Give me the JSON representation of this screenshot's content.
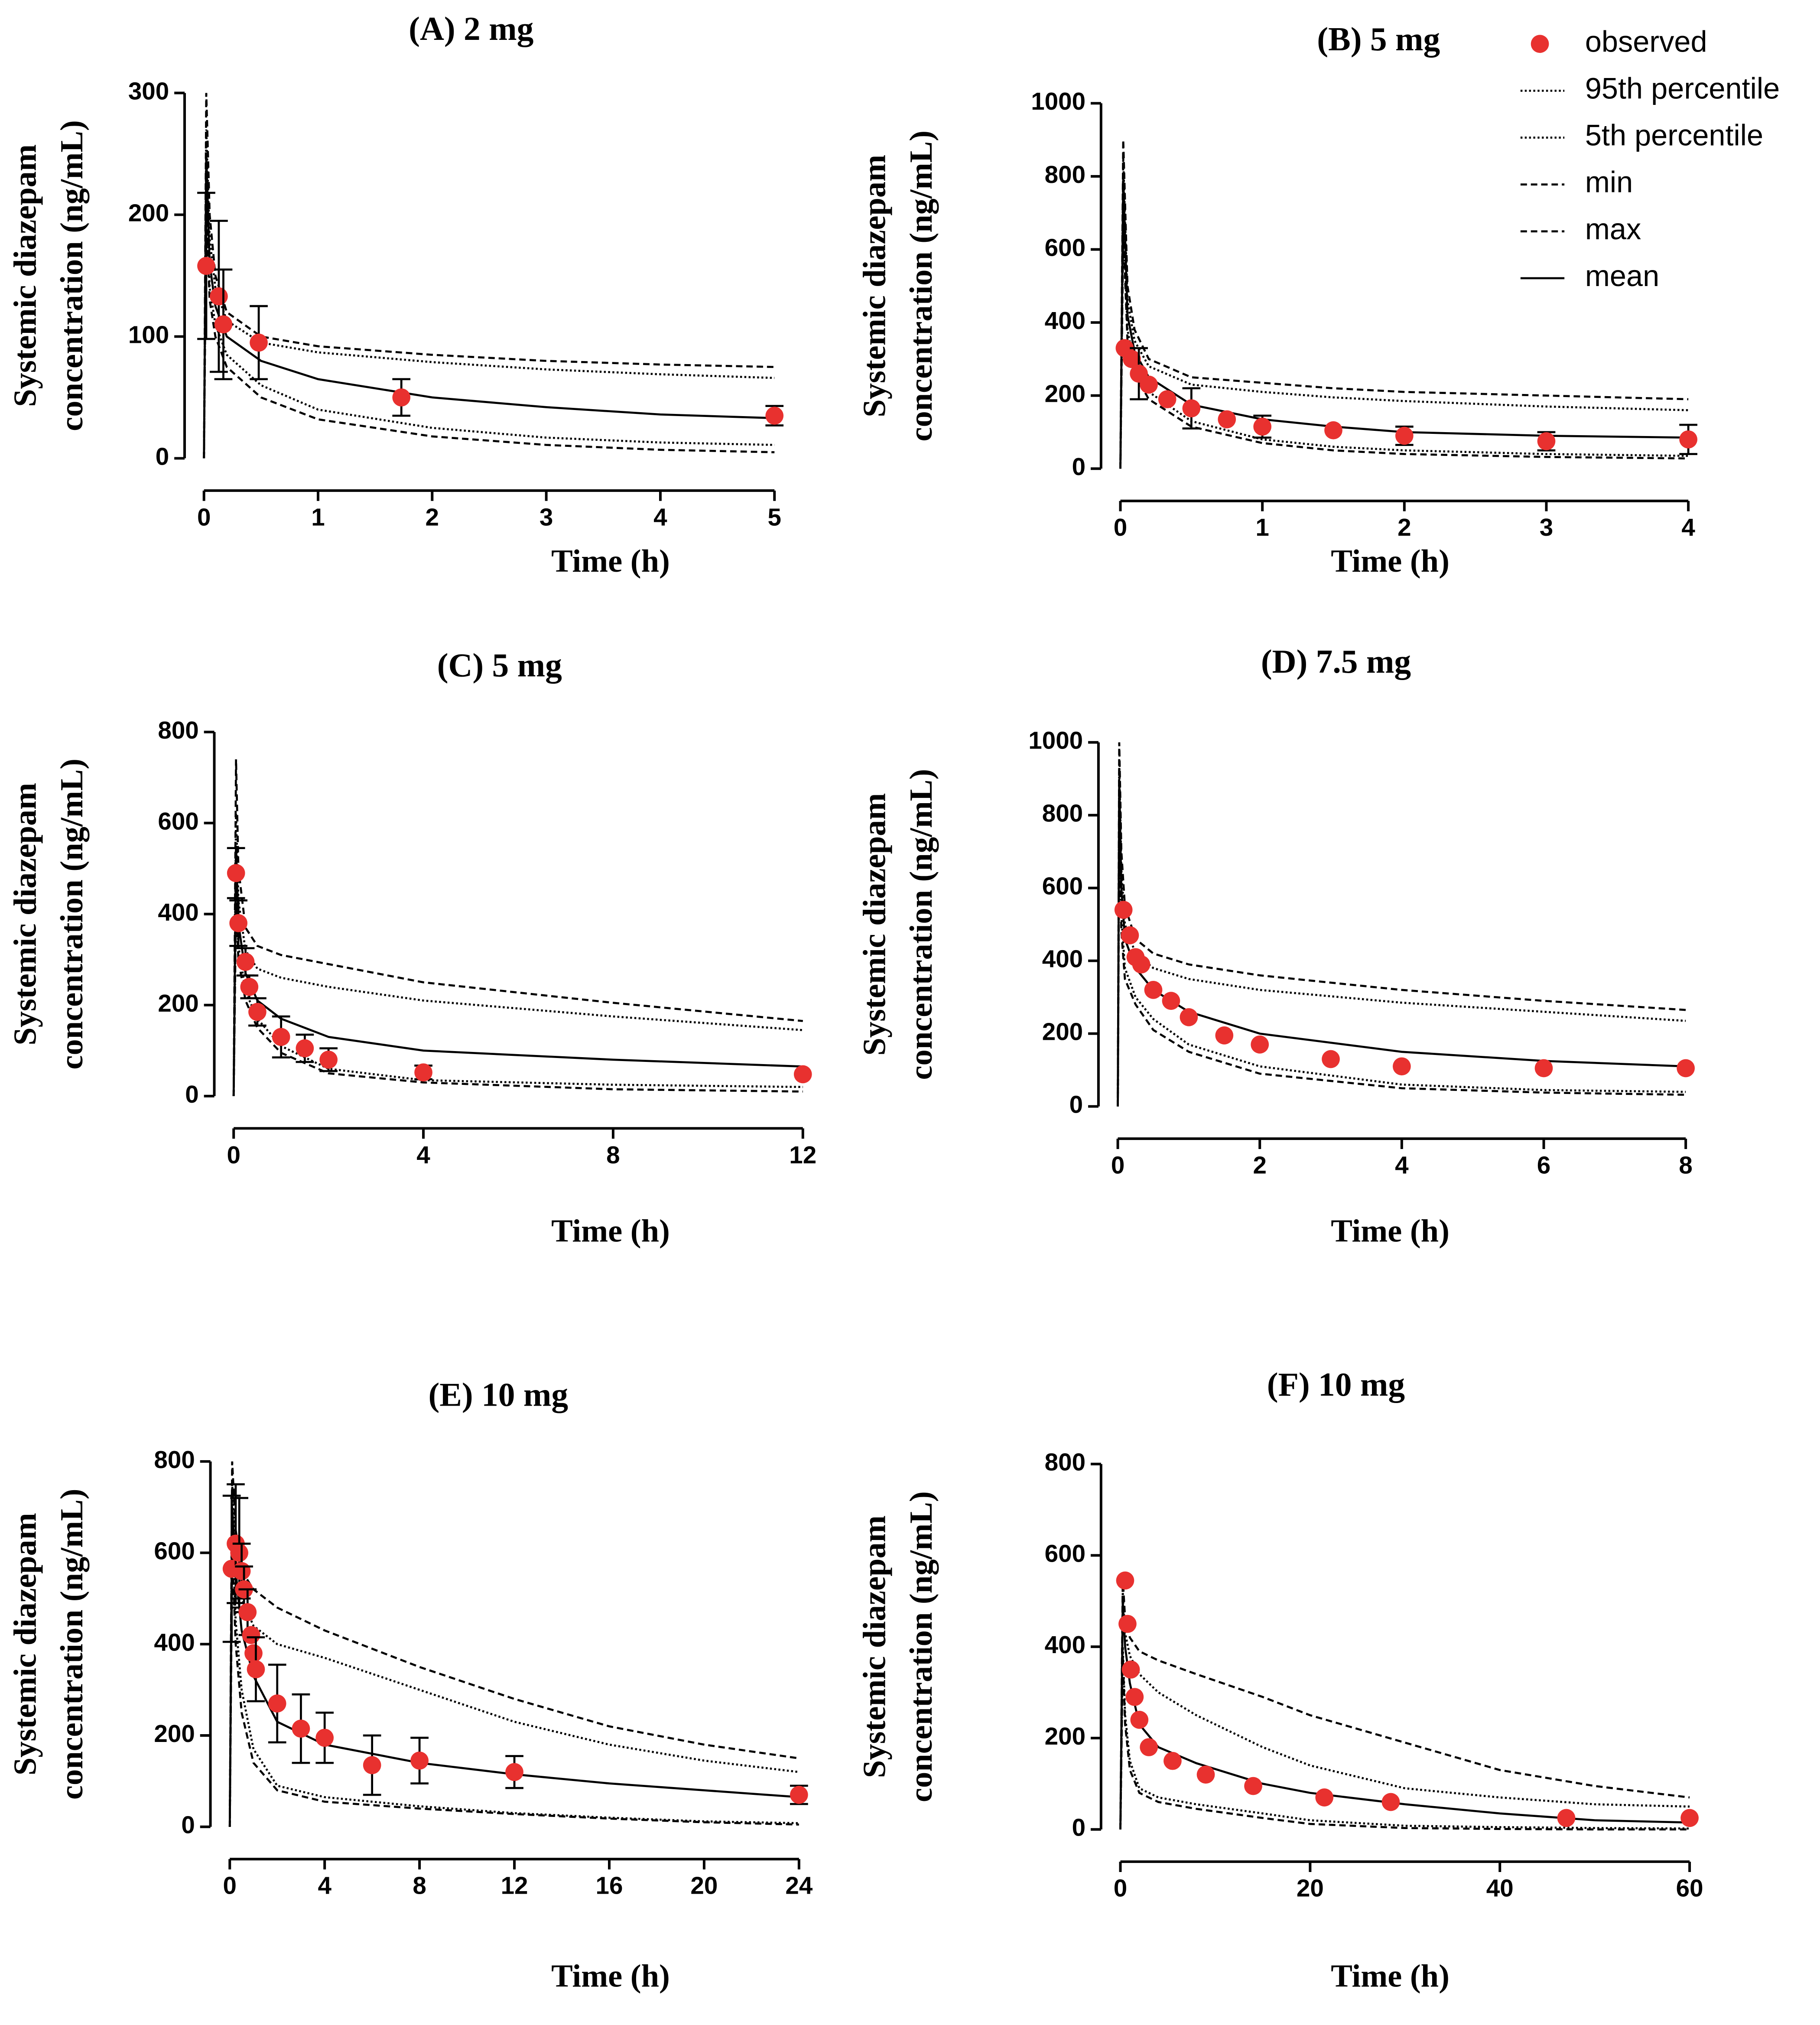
{
  "chart_data": [
    {
      "type": "line",
      "title": "(A) 2 mg",
      "xlabel": "Time (h)",
      "ylabel": [
        "Systemic diazepam",
        "concentration (ng/mL)"
      ],
      "xlim": [
        0,
        5
      ],
      "ylim": [
        0,
        300
      ],
      "xticks": [
        0,
        1,
        2,
        3,
        4,
        5
      ],
      "yticks": [
        0,
        100,
        200,
        300
      ],
      "x": [
        0,
        0.02,
        0.05,
        0.1,
        0.2,
        0.5,
        1,
        2,
        3,
        4,
        5
      ],
      "series": [
        {
          "type": "scatter",
          "color": "#e8312f",
          "x": [
            0.02,
            0.13,
            0.17,
            0.48,
            1.73,
            5
          ],
          "values": [
            158,
            133,
            110,
            95,
            50,
            35
          ],
          "errors": [
            60,
            62,
            45,
            30,
            15,
            8
          ]
        },
        {
          "color": "#000000",
          "dash": "dotted",
          "values": [
            0,
            270,
            180,
            140,
            113,
            95,
            87,
            79,
            73,
            69,
            66
          ]
        },
        {
          "color": "#000000",
          "dash": "dotted",
          "values": [
            0,
            220,
            140,
            110,
            85,
            60,
            40,
            25,
            17,
            13,
            11
          ]
        },
        {
          "color": "#000000",
          "dash": "dashed",
          "values": [
            0,
            200,
            130,
            100,
            75,
            50,
            32,
            18,
            11,
            7,
            5
          ]
        },
        {
          "color": "#000000",
          "dash": "dashed",
          "values": [
            0,
            300,
            200,
            150,
            120,
            100,
            92,
            85,
            80,
            77,
            75
          ]
        },
        {
          "color": "#000000",
          "dash": "solid",
          "values": [
            0,
            250,
            160,
            125,
            100,
            80,
            65,
            50,
            42,
            36,
            33
          ]
        }
      ]
    },
    {
      "type": "line",
      "title": "(B) 5 mg",
      "xlabel": "Time (h)",
      "ylabel": [
        "Systemic diazepam",
        "concentration (ng/mL)"
      ],
      "xlim": [
        0,
        4
      ],
      "ylim": [
        0,
        1000
      ],
      "xticks": [
        0,
        1,
        2,
        3,
        4
      ],
      "yticks": [
        0,
        200,
        400,
        600,
        800,
        1000
      ],
      "legend": "upper right",
      "x": [
        0,
        0.02,
        0.05,
        0.1,
        0.2,
        0.5,
        1,
        1.5,
        2,
        3,
        4
      ],
      "series": [
        {
          "name": "observed",
          "type": "scatter",
          "color": "#e8312f",
          "x": [
            0.03,
            0.08,
            0.13,
            0.2,
            0.33,
            0.5,
            0.75,
            1,
            1.5,
            2,
            3,
            4
          ],
          "values": [
            330,
            300,
            260,
            230,
            190,
            165,
            135,
            115,
            105,
            90,
            75,
            80
          ],
          "errors": [
            null,
            null,
            70,
            null,
            null,
            55,
            null,
            30,
            null,
            25,
            25,
            40
          ]
        },
        {
          "name": "95th percentile",
          "color": "#000000",
          "dash": "dotted",
          "values": [
            0,
            850,
            460,
            350,
            280,
            230,
            210,
            195,
            185,
            170,
            160
          ]
        },
        {
          "name": "5th percentile",
          "color": "#000000",
          "dash": "dotted",
          "values": [
            0,
            700,
            380,
            280,
            210,
            130,
            80,
            60,
            50,
            40,
            35
          ]
        },
        {
          "name": "min",
          "color": "#000000",
          "dash": "dashed",
          "values": [
            0,
            650,
            350,
            260,
            190,
            115,
            70,
            50,
            40,
            32,
            28
          ]
        },
        {
          "name": "max",
          "color": "#000000",
          "dash": "dashed",
          "values": [
            0,
            900,
            500,
            380,
            300,
            250,
            235,
            220,
            210,
            200,
            190
          ]
        },
        {
          "name": "mean",
          "color": "#000000",
          "dash": "solid",
          "values": [
            0,
            800,
            420,
            320,
            250,
            175,
            135,
            115,
            100,
            90,
            85
          ]
        }
      ]
    },
    {
      "type": "line",
      "title": "(C) 5 mg",
      "xlabel": "Time (h)",
      "ylabel": [
        "Systemic diazepam",
        "concentration (ng/mL)"
      ],
      "xlim": [
        0,
        12
      ],
      "ylim": [
        0,
        800
      ],
      "xticks": [
        0,
        4,
        8,
        12
      ],
      "yticks": [
        0,
        200,
        400,
        600,
        800
      ],
      "x": [
        0,
        0.05,
        0.1,
        0.25,
        0.5,
        1,
        2,
        4,
        8,
        12
      ],
      "series": [
        {
          "type": "scatter",
          "color": "#e8312f",
          "x": [
            0.05,
            0.1,
            0.25,
            0.33,
            0.5,
            1,
            1.5,
            2,
            4,
            12
          ],
          "values": [
            490,
            380,
            295,
            240,
            185,
            130,
            105,
            80,
            52,
            48
          ],
          "errors": [
            55,
            50,
            30,
            25,
            30,
            45,
            30,
            25,
            15,
            null
          ]
        },
        {
          "color": "#000000",
          "dash": "dotted",
          "values": [
            0,
            620,
            430,
            320,
            280,
            260,
            240,
            210,
            175,
            145
          ]
        },
        {
          "color": "#000000",
          "dash": "dotted",
          "values": [
            0,
            450,
            330,
            230,
            170,
            110,
            60,
            35,
            25,
            20
          ]
        },
        {
          "color": "#000000",
          "dash": "dashed",
          "values": [
            0,
            420,
            300,
            210,
            150,
            95,
            50,
            30,
            15,
            10
          ]
        },
        {
          "color": "#000000",
          "dash": "dashed",
          "values": [
            0,
            740,
            500,
            370,
            330,
            310,
            290,
            250,
            205,
            165
          ]
        },
        {
          "color": "#000000",
          "dash": "solid",
          "values": [
            0,
            550,
            380,
            270,
            210,
            170,
            130,
            100,
            80,
            65
          ]
        }
      ]
    },
    {
      "type": "line",
      "title": "(D) 7.5 mg",
      "xlabel": "Time (h)",
      "ylabel": [
        "Systemic diazepam",
        "concentration (ng/mL)"
      ],
      "xlim": [
        0,
        8
      ],
      "ylim": [
        0,
        1000
      ],
      "xticks": [
        0,
        2,
        4,
        6,
        8
      ],
      "yticks": [
        0,
        200,
        400,
        600,
        800,
        1000
      ],
      "x": [
        0,
        0.02,
        0.05,
        0.1,
        0.25,
        0.5,
        1,
        2,
        4,
        6,
        8
      ],
      "series": [
        {
          "type": "scatter",
          "color": "#e8312f",
          "x": [
            0.08,
            0.17,
            0.25,
            0.33,
            0.5,
            0.75,
            1,
            1.5,
            2,
            3,
            4,
            6,
            8
          ],
          "values": [
            540,
            470,
            410,
            390,
            320,
            290,
            245,
            195,
            170,
            130,
            110,
            105,
            105
          ],
          "errors": [
            null,
            null,
            null,
            null,
            null,
            null,
            null,
            null,
            null,
            null,
            null,
            null,
            null
          ]
        },
        {
          "color": "#000000",
          "dash": "dotted",
          "values": [
            0,
            950,
            650,
            500,
            420,
            380,
            350,
            320,
            285,
            260,
            235
          ]
        },
        {
          "color": "#000000",
          "dash": "dotted",
          "values": [
            0,
            800,
            520,
            380,
            300,
            240,
            170,
            110,
            60,
            45,
            40
          ]
        },
        {
          "color": "#000000",
          "dash": "dashed",
          "values": [
            0,
            750,
            480,
            350,
            280,
            210,
            150,
            90,
            50,
            38,
            32
          ]
        },
        {
          "color": "#000000",
          "dash": "dashed",
          "values": [
            0,
            1000,
            700,
            550,
            460,
            420,
            390,
            360,
            320,
            290,
            265
          ]
        },
        {
          "color": "#000000",
          "dash": "solid",
          "values": [
            0,
            900,
            600,
            460,
            380,
            320,
            260,
            200,
            150,
            125,
            110
          ]
        }
      ]
    },
    {
      "type": "line",
      "title": "(E) 10 mg",
      "xlabel": "Time (h)",
      "ylabel": [
        "Systemic diazepam",
        "concentration (ng/mL)"
      ],
      "xlim": [
        0,
        24
      ],
      "ylim": [
        0,
        800
      ],
      "xticks": [
        0,
        4,
        8,
        12,
        16,
        20,
        24
      ],
      "yticks": [
        0,
        200,
        400,
        600,
        800
      ],
      "x": [
        0,
        0.1,
        0.25,
        0.5,
        1,
        2,
        4,
        8,
        12,
        16,
        20,
        24
      ],
      "series": [
        {
          "type": "scatter",
          "color": "#e8312f",
          "x": [
            0.08,
            0.25,
            0.4,
            0.5,
            0.6,
            0.75,
            0.9,
            1,
            1.1,
            2,
            3,
            4,
            6,
            8,
            12,
            24
          ],
          "values": [
            565,
            620,
            600,
            560,
            520,
            470,
            420,
            380,
            345,
            270,
            215,
            195,
            135,
            145,
            120,
            70
          ],
          "errors": [
            160,
            130,
            120,
            60,
            50,
            50,
            null,
            null,
            70,
            85,
            75,
            55,
            65,
            50,
            35,
            20
          ]
        },
        {
          "color": "#000000",
          "dash": "dotted",
          "values": [
            0,
            750,
            600,
            500,
            440,
            400,
            370,
            300,
            230,
            180,
            145,
            120
          ]
        },
        {
          "color": "#000000",
          "dash": "dotted",
          "values": [
            0,
            650,
            450,
            300,
            170,
            90,
            65,
            45,
            30,
            20,
            12,
            8
          ]
        },
        {
          "color": "#000000",
          "dash": "dashed",
          "values": [
            0,
            600,
            400,
            250,
            140,
            80,
            55,
            40,
            28,
            18,
            10,
            5
          ]
        },
        {
          "color": "#000000",
          "dash": "dashed",
          "values": [
            0,
            800,
            650,
            560,
            520,
            480,
            430,
            350,
            280,
            220,
            180,
            150
          ]
        },
        {
          "color": "#000000",
          "dash": "solid",
          "values": [
            0,
            700,
            560,
            430,
            330,
            230,
            180,
            140,
            115,
            95,
            80,
            65
          ]
        }
      ]
    },
    {
      "type": "line",
      "title": "(F) 10 mg",
      "xlabel": "Time (h)",
      "ylabel": [
        "Systemic diazepam",
        "concentration (ng/mL)"
      ],
      "xlim": [
        0,
        60
      ],
      "ylim": [
        0,
        800
      ],
      "xticks": [
        0,
        20,
        40,
        60
      ],
      "yticks": [
        0,
        200,
        400,
        600,
        800
      ],
      "x": [
        0,
        0.25,
        0.5,
        1,
        2,
        4,
        8,
        15,
        20,
        30,
        40,
        50,
        60
      ],
      "series": [
        {
          "type": "scatter",
          "color": "#e8312f",
          "x": [
            0.5,
            0.75,
            1.1,
            1.5,
            2,
            3,
            5.5,
            9,
            14,
            21.5,
            28.5,
            47,
            60
          ],
          "values": [
            545,
            450,
            350,
            290,
            240,
            180,
            150,
            120,
            95,
            70,
            60,
            25,
            25
          ],
          "errors": [
            null,
            null,
            null,
            null,
            null,
            null,
            null,
            null,
            null,
            null,
            null,
            null,
            null
          ]
        },
        {
          "color": "#000000",
          "dash": "dotted",
          "values": [
            0,
            520,
            430,
            380,
            340,
            300,
            250,
            180,
            140,
            90,
            70,
            55,
            50
          ]
        },
        {
          "color": "#000000",
          "dash": "dotted",
          "values": [
            0,
            400,
            250,
            150,
            90,
            70,
            55,
            35,
            20,
            8,
            5,
            3,
            2
          ]
        },
        {
          "color": "#000000",
          "dash": "dashed",
          "values": [
            0,
            380,
            230,
            130,
            80,
            60,
            45,
            25,
            12,
            3,
            1,
            0,
            0
          ]
        },
        {
          "color": "#000000",
          "dash": "dashed",
          "values": [
            0,
            550,
            460,
            420,
            390,
            370,
            340,
            290,
            250,
            190,
            130,
            95,
            70
          ]
        },
        {
          "color": "#000000",
          "dash": "solid",
          "values": [
            0,
            500,
            400,
            320,
            230,
            180,
            145,
            100,
            80,
            55,
            35,
            20,
            15
          ]
        }
      ]
    }
  ]
}
